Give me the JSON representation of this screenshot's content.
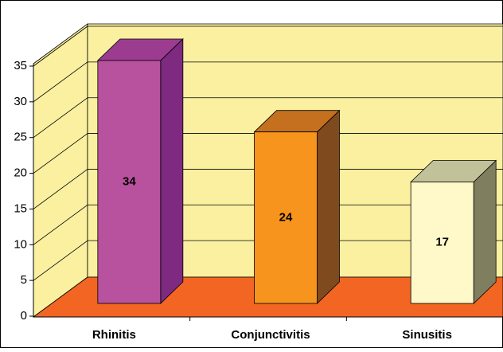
{
  "chart_data": {
    "type": "bar3d",
    "categories": [
      "Rhinitis",
      "Conjunctivitis",
      "Sinusitis"
    ],
    "values": [
      34,
      24,
      17
    ],
    "colors": [
      "#B8529E",
      "#F7941D",
      "#FFF8C8"
    ],
    "side_colors": [
      "#7E2A80",
      "#7F4A1E",
      "#7F7F60"
    ],
    "top_colors": [
      "#9C3C90",
      "#C4701F",
      "#C2C29A"
    ],
    "ylim": [
      0,
      35
    ],
    "yticks": [
      0,
      5,
      10,
      15,
      20,
      25,
      30,
      35
    ],
    "grid": true
  }
}
